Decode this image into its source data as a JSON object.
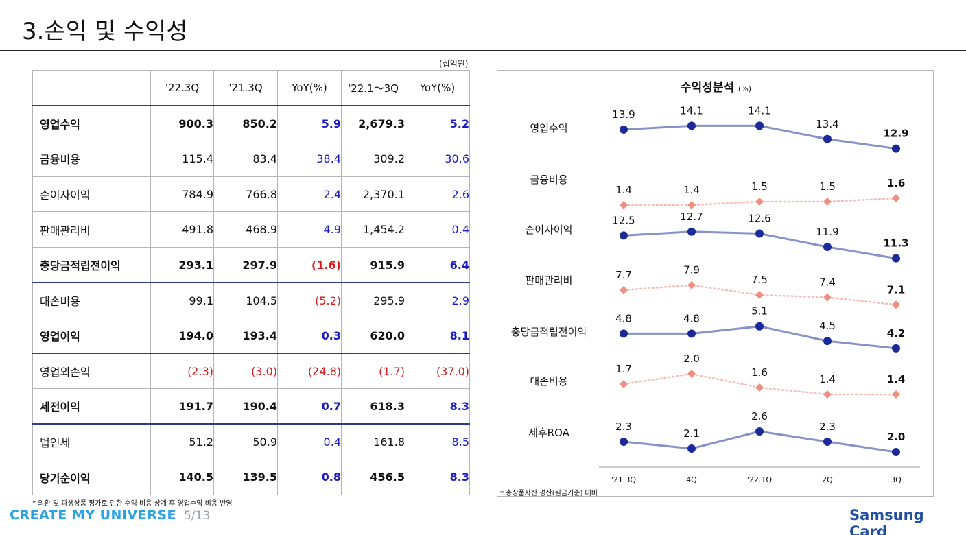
{
  "page": {
    "title": "3.손익 및 수익성",
    "unit": "(십억원)",
    "footnote_left": "* 외환 및 파생상품 평가로 인한 수익·비용 상계 후 영업수익·비용 반영",
    "footnote_right": "* 총상품자산 평잔(원금기준) 대비",
    "brand_left": "CREATE MY UNIVERSE",
    "page_number": "5/13",
    "brand_right": "Samsung Card"
  },
  "table": {
    "headers": [
      "",
      "'22.3Q",
      "'21.3Q",
      "YoY(%)",
      "'22.1～3Q",
      "YoY(%)"
    ],
    "rows": [
      {
        "label": "영업수익",
        "bold": true,
        "sep": true,
        "c1": "900.3",
        "c2": "850.2",
        "c3": "5.9",
        "c3_color": "blue",
        "c4": "2,679.3",
        "c5": "5.2",
        "c5_color": "blue",
        "c1_color": "",
        "c2_color": "",
        "c4_color": ""
      },
      {
        "label": "금융비용",
        "bold": false,
        "sep": false,
        "c1": "115.4",
        "c2": "83.4",
        "c3": "38.4",
        "c3_color": "blue",
        "c4": "309.2",
        "c5": "30.6",
        "c5_color": "blue",
        "c1_color": "",
        "c2_color": "",
        "c4_color": ""
      },
      {
        "label": "순이자이익",
        "bold": false,
        "sep": false,
        "c1": "784.9",
        "c2": "766.8",
        "c3": "2.4",
        "c3_color": "blue",
        "c4": "2,370.1",
        "c5": "2.6",
        "c5_color": "blue",
        "c1_color": "",
        "c2_color": "",
        "c4_color": ""
      },
      {
        "label": "판매관리비",
        "bold": false,
        "sep": false,
        "c1": "491.8",
        "c2": "468.9",
        "c3": "4.9",
        "c3_color": "blue",
        "c4": "1,454.2",
        "c5": "0.4",
        "c5_color": "blue",
        "c1_color": "",
        "c2_color": "",
        "c4_color": ""
      },
      {
        "label": "충당금적립전이익",
        "bold": true,
        "sep": false,
        "c1": "293.1",
        "c2": "297.9",
        "c3": "(1.6)",
        "c3_color": "red",
        "c4": "915.9",
        "c5": "6.4",
        "c5_color": "blue",
        "c1_color": "",
        "c2_color": "",
        "c4_color": ""
      },
      {
        "label": "대손비용",
        "bold": false,
        "sep": true,
        "c1": "99.1",
        "c2": "104.5",
        "c3": "(5.2)",
        "c3_color": "red",
        "c4": "295.9",
        "c5": "2.9",
        "c5_color": "blue",
        "c1_color": "",
        "c2_color": "",
        "c4_color": ""
      },
      {
        "label": "영업이익",
        "bold": true,
        "sep": false,
        "c1": "194.0",
        "c2": "193.4",
        "c3": "0.3",
        "c3_color": "blue",
        "c4": "620.0",
        "c5": "8.1",
        "c5_color": "blue",
        "c1_color": "",
        "c2_color": "",
        "c4_color": ""
      },
      {
        "label": "영업외손익",
        "bold": false,
        "sep": true,
        "c1": "(2.3)",
        "c2": "(3.0)",
        "c3": "(24.8)",
        "c3_color": "red",
        "c4": "(1.7)",
        "c5": "(37.0)",
        "c5_color": "red",
        "c1_color": "red",
        "c2_color": "red",
        "c4_color": "red"
      },
      {
        "label": "세전이익",
        "bold": true,
        "sep": false,
        "c1": "191.7",
        "c2": "190.4",
        "c3": "0.7",
        "c3_color": "blue",
        "c4": "618.3",
        "c5": "8.3",
        "c5_color": "blue",
        "c1_color": "",
        "c2_color": "",
        "c4_color": ""
      },
      {
        "label": "법인세",
        "bold": false,
        "sep": true,
        "c1": "51.2",
        "c2": "50.9",
        "c3": "0.4",
        "c3_color": "blue",
        "c4": "161.8",
        "c5": "8.5",
        "c5_color": "blue",
        "c1_color": "",
        "c2_color": "",
        "c4_color": ""
      },
      {
        "label": "당기순이익",
        "bold": true,
        "sep": false,
        "c1": "140.5",
        "c2": "139.5",
        "c3": "0.8",
        "c3_color": "blue",
        "c4": "456.5",
        "c5": "8.3",
        "c5_color": "blue",
        "c1_color": "",
        "c2_color": "",
        "c4_color": ""
      }
    ]
  },
  "chart_data": {
    "type": "line",
    "title": "수익성분석",
    "unit": "(%)",
    "x": [
      "'21.3Q",
      "4Q",
      "'22.1Q",
      "2Q",
      "3Q"
    ],
    "colors": {
      "solid": "#8892c8",
      "solid_marker": "#1b2a9a",
      "dotted": "#f2c0b6",
      "dotted_marker": "#ef8f7f"
    },
    "series": [
      {
        "name": "영업수익",
        "style": "solid",
        "values": [
          13.9,
          14.1,
          14.1,
          13.4,
          12.9
        ]
      },
      {
        "name": "금융비용",
        "style": "dotted",
        "values": [
          1.4,
          1.4,
          1.5,
          1.5,
          1.6
        ]
      },
      {
        "name": "순이자이익",
        "style": "solid",
        "values": [
          12.5,
          12.7,
          12.6,
          11.9,
          11.3
        ]
      },
      {
        "name": "판매관리비",
        "style": "dotted",
        "values": [
          7.7,
          7.9,
          7.5,
          7.4,
          7.1
        ]
      },
      {
        "name": "충당금적립전이익",
        "style": "solid",
        "values": [
          4.8,
          4.8,
          5.1,
          4.5,
          4.2
        ]
      },
      {
        "name": "대손비용",
        "style": "dotted",
        "values": [
          1.7,
          2.0,
          1.6,
          1.4,
          1.4
        ]
      },
      {
        "name": "세후ROA",
        "style": "solid",
        "values": [
          2.3,
          2.1,
          2.6,
          2.3,
          2.0
        ]
      }
    ]
  }
}
